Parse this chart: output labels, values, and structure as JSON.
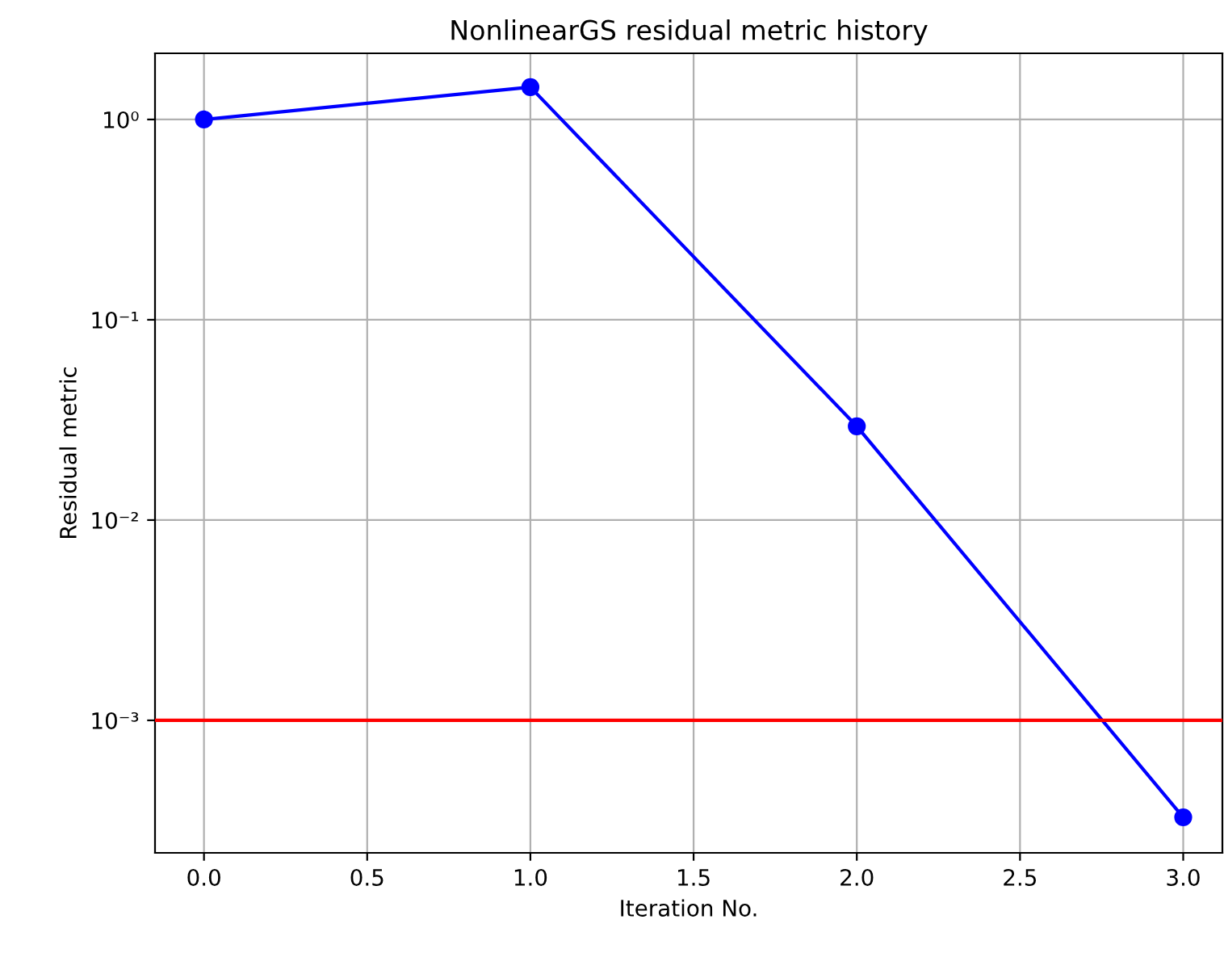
{
  "chart_data": {
    "type": "line",
    "title": "NonlinearGS residual metric history",
    "xlabel": "Iteration No.",
    "ylabel": "Residual metric",
    "x": [
      0,
      1,
      2,
      3
    ],
    "series": [
      {
        "color": "#0000ff",
        "values": [
          1,
          1.45,
          0.0294,
          0.000328
        ]
      }
    ],
    "log": "y",
    "marker": "circle",
    "line_style": "solid",
    "grid": true,
    "xlim": [
      -0.15,
      3.12
    ],
    "xticks": [
      {
        "value": 0,
        "label": "0.0"
      },
      {
        "value": 0.5,
        "label": "0.5"
      },
      {
        "value": 1,
        "label": "1.0"
      },
      {
        "value": 1.5,
        "label": "1.5"
      },
      {
        "value": 2,
        "label": "2.0"
      },
      {
        "value": 2.5,
        "label": "2.5"
      },
      {
        "value": 3,
        "label": "3.0"
      }
    ],
    "ylim": [
      0.000218,
      2.14
    ],
    "yticks": [
      {
        "value": 0.001,
        "label": "10⁻³"
      },
      {
        "value": 0.01,
        "label": "10⁻²"
      },
      {
        "value": 0.1,
        "label": "10⁻¹"
      },
      {
        "value": 1,
        "label": "10⁰"
      }
    ],
    "ref_lines": [
      {
        "axis": "y",
        "value": 0.001,
        "color": "#ff0000",
        "line_style": "solid"
      }
    ]
  }
}
